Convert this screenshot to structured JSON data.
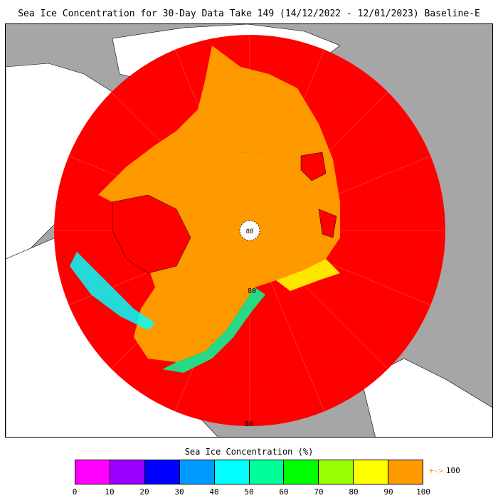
{
  "title": "Sea Ice Concentration for 30-Day Data Take 149 (14/12/2022 - 12/01/2023) Baseline-E",
  "map": {
    "projection_label_80": "80",
    "pole_label": "88",
    "background_color": "#a6a6a6",
    "land_color": "#ffffff",
    "ocean_outside_color": "#a6a6a6",
    "sea_ice_full_color": "#ff9900",
    "open_water_color": "#ff0000"
  },
  "legend": {
    "title": "Sea Ice Concentration (%)",
    "ticks": [
      "0",
      "10",
      "20",
      "30",
      "40",
      "50",
      "60",
      "70",
      "80",
      "90",
      "100"
    ],
    "colors": [
      "#ff00ff",
      "#9900ff",
      "#0000ff",
      "#0099ff",
      "#00ffff",
      "#00ff99",
      "#00ff00",
      "#99ff00",
      "#ffff00",
      "#ff9900"
    ],
    "overflow_arrow": "+->",
    "overflow_label": "100"
  }
}
